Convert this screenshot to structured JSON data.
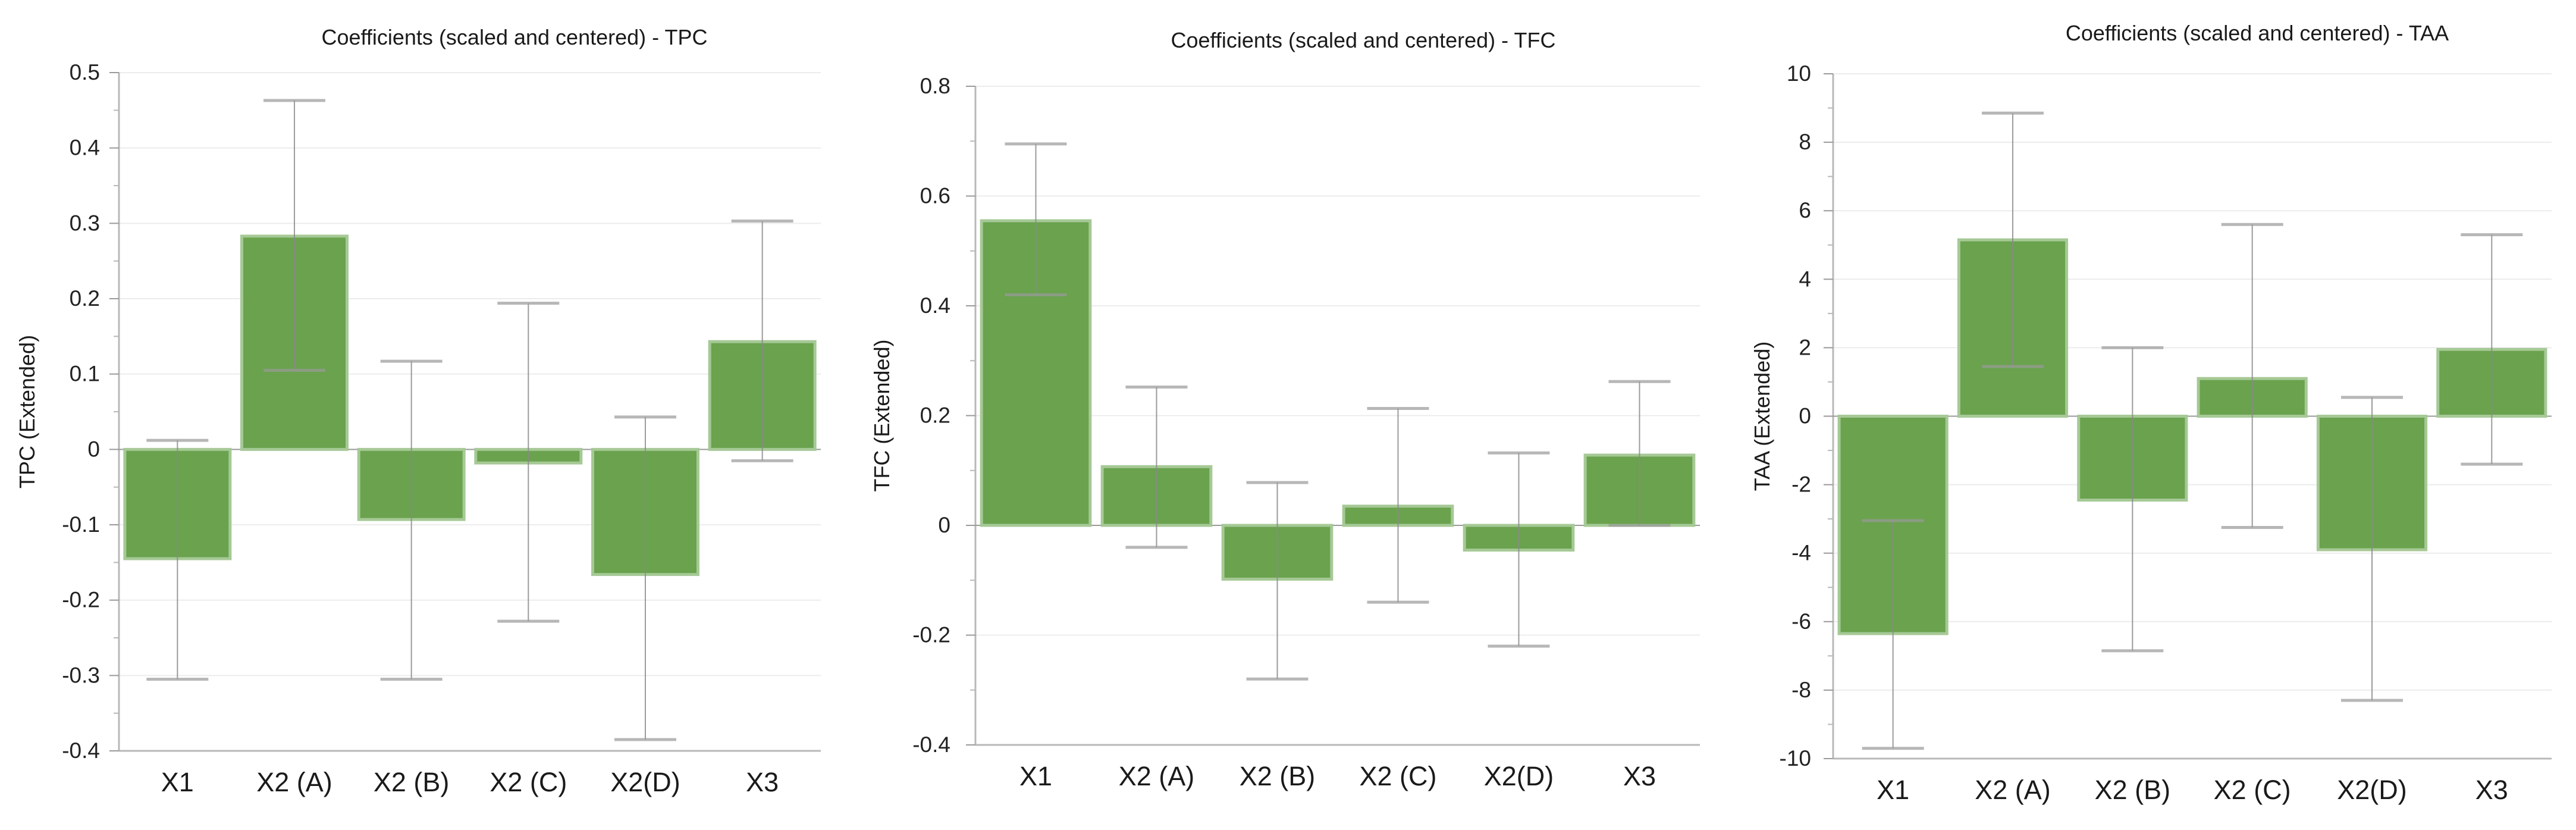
{
  "chart_data": [
    {
      "type": "bar",
      "title": "Coefficients (scaled and centered) - TPC",
      "xlabel": "",
      "ylabel": "TPC (Extended)",
      "categories": [
        "X1",
        "X2 (A)",
        "X2 (B)",
        "X2 (C)",
        "X2(D)",
        "X3"
      ],
      "values": [
        -0.145,
        0.283,
        -0.093,
        -0.018,
        -0.166,
        0.143
      ],
      "error_low": [
        -0.305,
        0.105,
        -0.305,
        -0.228,
        -0.385,
        -0.015
      ],
      "error_high": [
        0.012,
        0.463,
        0.117,
        0.194,
        0.043,
        0.303
      ],
      "ylim": [
        -0.4,
        0.5
      ],
      "yticks": [
        -0.4,
        -0.3,
        -0.2,
        -0.1,
        0,
        0.1,
        0.2,
        0.3,
        0.4,
        0.5
      ],
      "ytick_labels": [
        "-0.4",
        "-0.3",
        "-0.2",
        "-0.1",
        "0",
        "0.1",
        "0.2",
        "0.3",
        "0.4",
        "0.5"
      ],
      "grid": true,
      "color": "#6aa24e"
    },
    {
      "type": "bar",
      "title": "Coefficients (scaled and centered) - TFC",
      "xlabel": "",
      "ylabel": "TFC (Extended)",
      "categories": [
        "X1",
        "X2 (A)",
        "X2 (B)",
        "X2 (C)",
        "X2(D)",
        "X3"
      ],
      "values": [
        0.555,
        0.107,
        -0.098,
        0.035,
        -0.045,
        0.128
      ],
      "error_low": [
        0.42,
        -0.04,
        -0.28,
        -0.14,
        -0.22,
        0.0
      ],
      "error_high": [
        0.695,
        0.252,
        0.078,
        0.213,
        0.132,
        0.262
      ],
      "ylim": [
        -0.4,
        0.8
      ],
      "yticks": [
        -0.4,
        -0.2,
        0,
        0.2,
        0.4,
        0.6,
        0.8
      ],
      "ytick_labels": [
        "-0.4",
        "-0.2",
        "0",
        "0.2",
        "0.4",
        "0.6",
        "0.8"
      ],
      "grid": true,
      "color": "#6aa24e"
    },
    {
      "type": "bar",
      "title": "Coefficients (scaled and centered) - TAA",
      "xlabel": "",
      "ylabel": "TAA (Extended)",
      "categories": [
        "X1",
        "X2 (A)",
        "X2 (B)",
        "X2 (C)",
        "X2(D)",
        "X3"
      ],
      "values": [
        -6.35,
        5.15,
        -2.45,
        1.1,
        -3.9,
        1.95
      ],
      "error_low": [
        -9.7,
        1.45,
        -6.85,
        -3.25,
        -8.3,
        -1.4
      ],
      "error_high": [
        -3.05,
        8.85,
        2.0,
        5.6,
        0.55,
        5.3
      ],
      "ylim": [
        -10,
        10
      ],
      "yticks": [
        -10,
        -8,
        -6,
        -4,
        -2,
        0,
        2,
        4,
        6,
        8,
        10
      ],
      "ytick_labels": [
        "-10",
        "-8",
        "-6",
        "-4",
        "-2",
        "0",
        "2",
        "4",
        "6",
        "8",
        "10"
      ],
      "grid": true,
      "color": "#6aa24e"
    }
  ]
}
